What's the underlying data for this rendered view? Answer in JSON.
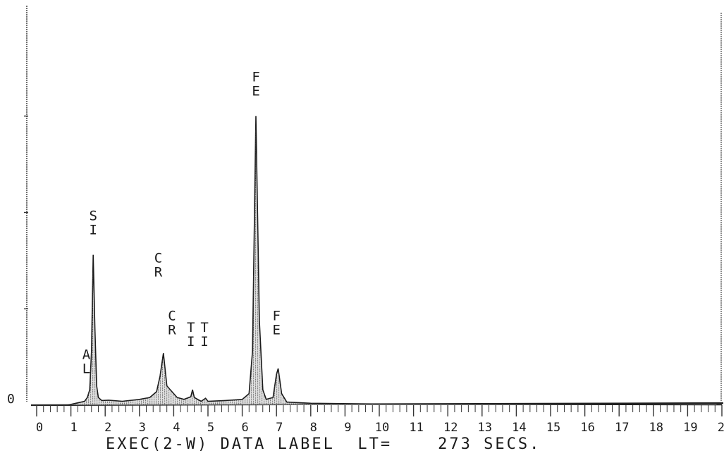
{
  "chart_data": {
    "type": "line",
    "title": "",
    "xlabel": "",
    "ylabel": "",
    "xlim": [
      0,
      20
    ],
    "ylim": [
      0,
      100
    ],
    "y_origin_label": "0",
    "x_tick_labels": [
      "0",
      "1",
      "2",
      "3",
      "4",
      "5",
      "6",
      "7",
      "8",
      "9",
      "10",
      "11",
      "12",
      "13",
      "14",
      "15",
      "16",
      "17",
      "18",
      "19",
      "20"
    ],
    "series": [
      {
        "x": [
          0.9,
          1.2,
          1.4,
          1.48,
          1.55,
          1.6,
          1.65,
          1.7,
          1.75,
          1.8,
          1.9,
          2.1,
          2.5,
          3.0,
          3.3,
          3.5,
          3.6,
          3.7,
          3.8,
          3.9,
          4.0,
          4.1,
          4.3,
          4.5,
          4.55,
          4.6,
          4.8,
          4.93,
          5.0,
          5.5,
          6.0,
          6.2,
          6.3,
          6.4,
          6.5,
          6.6,
          6.7,
          6.9,
          7.0,
          7.05,
          7.15,
          7.3,
          8.0,
          10.0,
          15.0,
          20.0
        ],
        "y": [
          0,
          0.6,
          1.0,
          2.0,
          4.0,
          14.0,
          39.0,
          20.0,
          5.0,
          2.0,
          1.2,
          1.3,
          1.0,
          1.5,
          2.0,
          3.5,
          7.5,
          13.5,
          5.0,
          4.0,
          3.0,
          2.0,
          1.5,
          2.2,
          4.0,
          2.0,
          1.0,
          1.8,
          1.0,
          1.2,
          1.5,
          3.0,
          14.0,
          75.0,
          22.0,
          4.0,
          1.5,
          2.0,
          8.0,
          9.5,
          3.0,
          0.8,
          0.5,
          0.3,
          0.2,
          0.1
        ]
      }
    ],
    "peak_labels": [
      {
        "label": "SI",
        "x": 1.65,
        "y": 48
      },
      {
        "label": "AL",
        "x": 1.45,
        "y": 12
      },
      {
        "label": "CR",
        "x": 3.55,
        "y": 37
      },
      {
        "label": "CR",
        "x": 3.95,
        "y": 22
      },
      {
        "label": "TI",
        "x": 4.5,
        "y": 19
      },
      {
        "label": "TI",
        "x": 4.9,
        "y": 19
      },
      {
        "label": "FE",
        "x": 6.4,
        "y": 84
      },
      {
        "label": "FE",
        "x": 7.0,
        "y": 22
      }
    ],
    "grid": false,
    "legend": "none"
  },
  "footer": {
    "label": "EXEC(2-W) DATA LABEL",
    "lt_label": "LT=",
    "lt_value": "273",
    "lt_unit": "SECS."
  }
}
